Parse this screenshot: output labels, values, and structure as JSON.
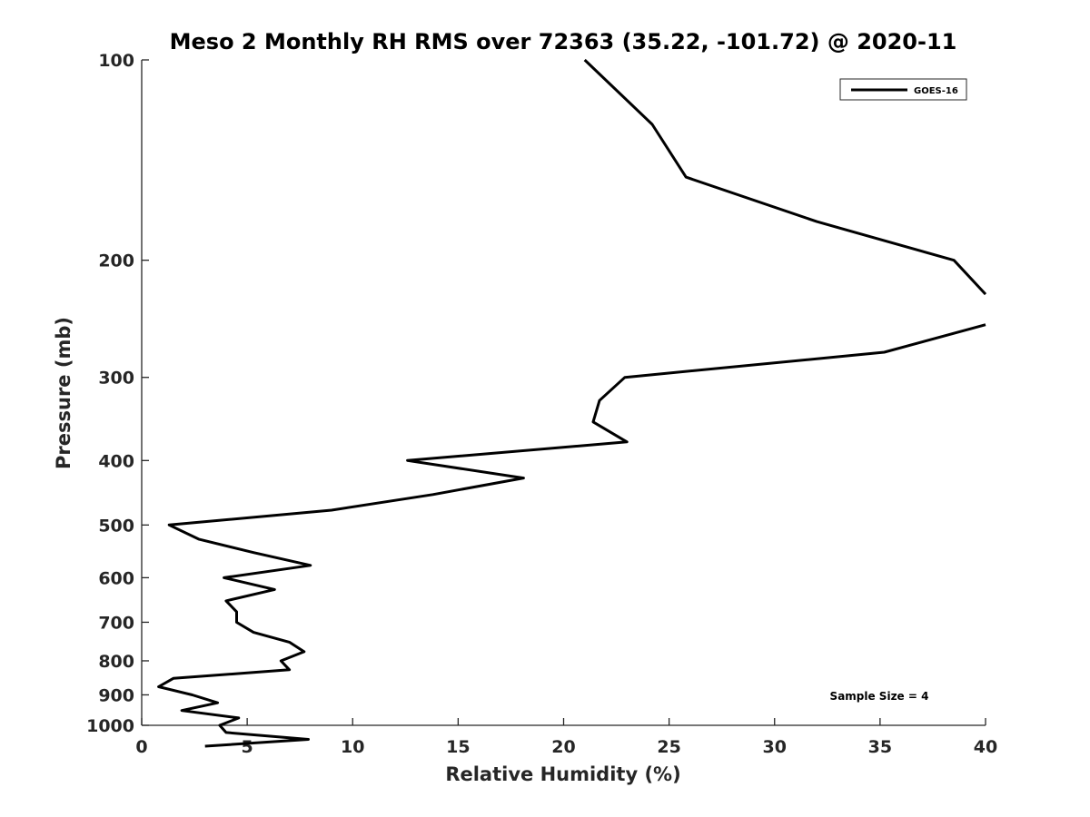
{
  "chart_data": {
    "type": "line",
    "title": "Meso 2 Monthly RH RMS over 72363 (35.22, -101.72) @ 2020-11",
    "xlabel": "Relative Humidity (%)",
    "ylabel": "Pressure (mb)",
    "xlim": [
      0,
      40
    ],
    "ylim": [
      100,
      1000
    ],
    "y_scale": "log",
    "y_reversed": true,
    "x_ticks": [
      0,
      5,
      10,
      15,
      20,
      25,
      30,
      35,
      40
    ],
    "y_ticks": [
      100,
      200,
      300,
      400,
      500,
      600,
      700,
      800,
      900,
      1000
    ],
    "grid": false,
    "legend_position": "top-right",
    "annotation": "Sample Size = 4",
    "series": [
      {
        "name": "GOES-16",
        "color": "#000000",
        "points": [
          {
            "x": 21.0,
            "y": 100
          },
          {
            "x": 24.2,
            "y": 125
          },
          {
            "x": 25.8,
            "y": 150
          },
          {
            "x": 32.0,
            "y": 175
          },
          {
            "x": 38.5,
            "y": 200
          },
          {
            "x": 40.0,
            "y": 225
          },
          {
            "x": null,
            "y": null
          },
          {
            "x": 40.0,
            "y": 250
          },
          {
            "x": 35.2,
            "y": 275
          },
          {
            "x": 22.9,
            "y": 300
          },
          {
            "x": 21.7,
            "y": 325
          },
          {
            "x": 21.4,
            "y": 350
          },
          {
            "x": 23.0,
            "y": 375
          },
          {
            "x": 12.6,
            "y": 400
          },
          {
            "x": 18.1,
            "y": 425
          },
          {
            "x": 13.8,
            "y": 450
          },
          {
            "x": 9.0,
            "y": 475
          },
          {
            "x": 1.3,
            "y": 500
          },
          {
            "x": 2.7,
            "y": 525
          },
          {
            "x": 5.3,
            "y": 550
          },
          {
            "x": 8.0,
            "y": 575
          },
          {
            "x": 3.9,
            "y": 600
          },
          {
            "x": 6.3,
            "y": 625
          },
          {
            "x": 4.0,
            "y": 650
          },
          {
            "x": 4.5,
            "y": 675
          },
          {
            "x": 4.5,
            "y": 700
          },
          {
            "x": 5.3,
            "y": 725
          },
          {
            "x": 7.0,
            "y": 750
          },
          {
            "x": 7.7,
            "y": 775
          },
          {
            "x": 6.6,
            "y": 800
          },
          {
            "x": 7.0,
            "y": 825
          },
          {
            "x": 1.5,
            "y": 850
          },
          {
            "x": 0.8,
            "y": 875
          },
          {
            "x": 2.4,
            "y": 900
          },
          {
            "x": 3.6,
            "y": 925
          },
          {
            "x": 1.9,
            "y": 950
          },
          {
            "x": 4.6,
            "y": 975
          },
          {
            "x": 3.7,
            "y": 1000
          },
          {
            "x": 4.0,
            "y": 1025
          },
          {
            "x": 7.9,
            "y": 1050
          },
          {
            "x": 3.0,
            "y": 1075
          }
        ]
      }
    ]
  }
}
